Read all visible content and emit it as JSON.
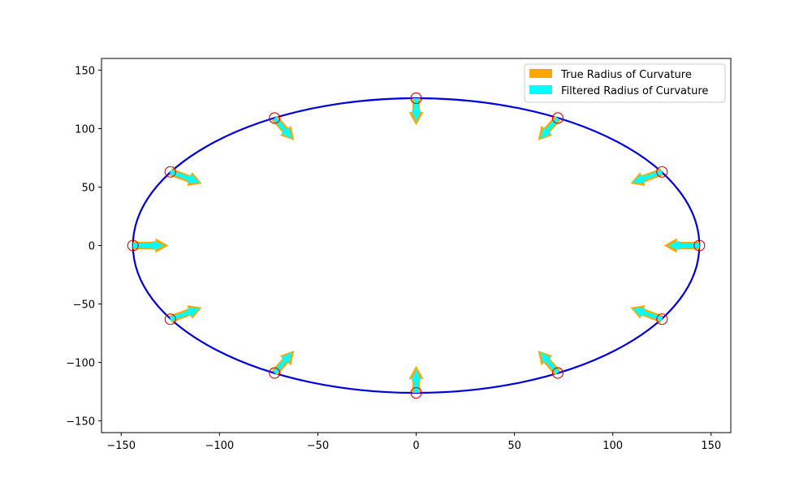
{
  "chart_data": {
    "type": "scatter",
    "title": "",
    "xlabel": "",
    "ylabel": "",
    "xlim": [
      -160,
      160
    ],
    "ylim": [
      -160,
      160
    ],
    "xticks": [
      -150,
      -100,
      -50,
      0,
      50,
      100,
      150
    ],
    "yticks": [
      -150,
      -100,
      -50,
      0,
      50,
      100,
      150
    ],
    "grid": false,
    "legend_position": "top-right",
    "ellipse": {
      "a": 144,
      "b": 126,
      "color": "#0000dd"
    },
    "sample_points": [
      {
        "x": 144,
        "y": 0
      },
      {
        "x": 125,
        "y": 63
      },
      {
        "x": 72,
        "y": 109
      },
      {
        "x": 0,
        "y": 126
      },
      {
        "x": -72,
        "y": 109
      },
      {
        "x": -125,
        "y": 63
      },
      {
        "x": -144,
        "y": 0
      },
      {
        "x": -125,
        "y": -63
      },
      {
        "x": -72,
        "y": -109
      },
      {
        "x": 0,
        "y": -126
      },
      {
        "x": 72,
        "y": -109
      },
      {
        "x": 125,
        "y": -63
      }
    ],
    "marker_color": "#dd0000",
    "series": [
      {
        "name": "True Radius of Curvature",
        "color": "#ffa500",
        "vectors": [
          {
            "x": 144,
            "y": 0,
            "dx": -18,
            "dy": 0
          },
          {
            "x": 125,
            "y": 63,
            "dx": -16,
            "dy": -10
          },
          {
            "x": 72,
            "y": 109,
            "dx": -10,
            "dy": -19
          },
          {
            "x": 0,
            "y": 126,
            "dx": 0,
            "dy": -23
          },
          {
            "x": -72,
            "y": 109,
            "dx": 10,
            "dy": -19
          },
          {
            "x": -125,
            "y": 63,
            "dx": 16,
            "dy": -10
          },
          {
            "x": -144,
            "y": 0,
            "dx": 18,
            "dy": 0
          },
          {
            "x": -125,
            "y": -63,
            "dx": 16,
            "dy": 10
          },
          {
            "x": -72,
            "y": -109,
            "dx": 10,
            "dy": 19
          },
          {
            "x": 0,
            "y": -126,
            "dx": 0,
            "dy": 23
          },
          {
            "x": 72,
            "y": -109,
            "dx": -10,
            "dy": 19
          },
          {
            "x": 125,
            "y": -63,
            "dx": -16,
            "dy": 10
          }
        ]
      },
      {
        "name": "Filtered Radius of Curvature",
        "color": "#00ffff",
        "vectors": [
          {
            "x": 144,
            "y": 0,
            "dx": -16,
            "dy": 0
          },
          {
            "x": 125,
            "y": 63,
            "dx": -15,
            "dy": -9
          },
          {
            "x": 72,
            "y": 109,
            "dx": -9,
            "dy": -18
          },
          {
            "x": 0,
            "y": 126,
            "dx": 0,
            "dy": -20
          },
          {
            "x": -72,
            "y": 109,
            "dx": 9,
            "dy": -18
          },
          {
            "x": -125,
            "y": 63,
            "dx": 15,
            "dy": -9
          },
          {
            "x": -144,
            "y": 0,
            "dx": 16,
            "dy": 0
          },
          {
            "x": -125,
            "y": -63,
            "dx": 15,
            "dy": 9
          },
          {
            "x": -72,
            "y": -109,
            "dx": 9,
            "dy": 18
          },
          {
            "x": 0,
            "y": -126,
            "dx": 0,
            "dy": 20
          },
          {
            "x": 72,
            "y": -109,
            "dx": -9,
            "dy": 18
          },
          {
            "x": 125,
            "y": -63,
            "dx": -15,
            "dy": 9
          }
        ]
      }
    ]
  }
}
